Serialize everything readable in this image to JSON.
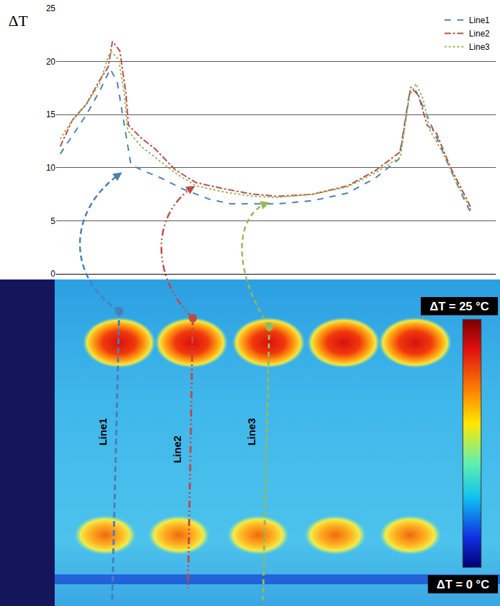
{
  "chart_data": {
    "type": "line",
    "y_label": "ΔT",
    "xlim": [
      -1,
      106
    ],
    "xticks": [],
    "ylim": [
      0,
      25
    ],
    "yticks": [
      0,
      5,
      10,
      15,
      20,
      25
    ],
    "grid": true,
    "legend": "top-right",
    "tick_labels": "y",
    "series": [
      {
        "name": "Line1",
        "color": "#4a7ebb",
        "line_style": "dash",
        "x": [
          0,
          3,
          6.4,
          9.7,
          12.2,
          13.9,
          15.6,
          17.2,
          19.7,
          24.7,
          29.8,
          36.5,
          41.5,
          53.2,
          61.5,
          69.9,
          76.6,
          82.4,
          84.9,
          86.6,
          88.6,
          91.6,
          95,
          98.3,
          100
        ],
        "values": [
          11.3,
          13,
          15,
          17.3,
          19.3,
          18,
          14,
          10.3,
          9.8,
          9,
          8,
          7,
          6.6,
          6.6,
          6.9,
          7.6,
          9,
          10.8,
          16.8,
          17.2,
          15.5,
          12.8,
          9.8,
          7,
          5.7
        ]
      },
      {
        "name": "Line2",
        "color": "#be4b48",
        "line_style": "dashdot",
        "x": [
          0,
          3,
          6.4,
          9.7,
          11.7,
          12.7,
          14.5,
          16,
          16.6,
          19.7,
          23,
          28,
          33,
          40,
          47,
          53,
          61.5,
          70,
          76.6,
          82.8,
          85.3,
          87.2,
          89.3,
          91.6,
          95,
          100
        ],
        "values": [
          12,
          14.5,
          16,
          18.3,
          19.5,
          21.9,
          21,
          17,
          14,
          12.8,
          11.8,
          9.8,
          8.6,
          8,
          7.5,
          7.3,
          7.5,
          8.3,
          9.7,
          11.5,
          17.6,
          16.8,
          14,
          13.2,
          10,
          6.2
        ]
      },
      {
        "name": "Line3",
        "color": "#98b954",
        "line_style": "dot",
        "x": [
          0,
          3,
          6.4,
          9.7,
          11.7,
          12.5,
          14.2,
          15.6,
          16.4,
          19.7,
          23,
          28,
          33,
          40,
          47,
          53,
          61.5,
          70,
          76.6,
          82.8,
          85,
          86.6,
          88.3,
          90,
          93,
          96.5,
          100
        ],
        "values": [
          12.7,
          14.5,
          16,
          18,
          20.5,
          20.9,
          20.2,
          17,
          13.5,
          12,
          11,
          9.5,
          8.3,
          7.7,
          7.3,
          7.2,
          7.5,
          8.2,
          9.5,
          11,
          16.8,
          17.9,
          16.5,
          13.5,
          11.5,
          8.5,
          6
        ]
      }
    ]
  },
  "thermal_image": {
    "colorbar_labels": {
      "top": "ΔT = 25 °C",
      "bottom": "ΔT = 0 °C"
    }
  }
}
